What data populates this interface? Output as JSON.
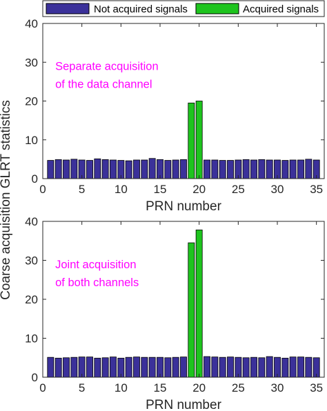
{
  "colors": {
    "not_acquired": "#3b319a",
    "acquired": "#1ec41e",
    "annotation": "#ff00ff",
    "axis": "#262626"
  },
  "legend": {
    "not_acquired_label": "Not acquired signals",
    "acquired_label": "Acquired signals",
    "placement": "top"
  },
  "ylabel": "Coarse acquisition GLRT statistics",
  "chart_data": [
    {
      "type": "bar",
      "xlabel": "PRN number",
      "xlim": [
        0,
        36
      ],
      "ylim": [
        0,
        40
      ],
      "xticks": [
        0,
        5,
        10,
        15,
        20,
        25,
        30,
        35
      ],
      "yticks": [
        0,
        10,
        20,
        30,
        40
      ],
      "annotation": [
        "Separate acquisition",
        "of the data channel"
      ],
      "x": [
        1,
        2,
        3,
        4,
        5,
        6,
        7,
        8,
        9,
        10,
        11,
        12,
        13,
        14,
        15,
        16,
        17,
        18,
        19,
        20,
        21,
        22,
        23,
        24,
        25,
        26,
        27,
        28,
        29,
        30,
        31,
        32,
        33,
        34,
        35
      ],
      "series": [
        {
          "name": "Not acquired signals",
          "values": [
            4.7,
            4.9,
            4.8,
            5.0,
            4.8,
            4.7,
            5.1,
            4.9,
            4.8,
            4.7,
            4.6,
            4.8,
            4.8,
            5.2,
            4.9,
            4.7,
            4.8,
            4.9,
            null,
            null,
            4.8,
            4.8,
            4.7,
            4.7,
            4.8,
            4.9,
            4.8,
            4.9,
            4.8,
            4.8,
            4.7,
            4.8,
            4.8,
            5.0,
            4.8
          ]
        },
        {
          "name": "Acquired signals",
          "values": [
            null,
            null,
            null,
            null,
            null,
            null,
            null,
            null,
            null,
            null,
            null,
            null,
            null,
            null,
            null,
            null,
            null,
            null,
            19.5,
            20.0,
            null,
            null,
            null,
            null,
            null,
            null,
            null,
            null,
            null,
            null,
            null,
            null,
            null,
            null,
            null
          ]
        }
      ]
    },
    {
      "type": "bar",
      "xlabel": "PRN number",
      "xlim": [
        0,
        36
      ],
      "ylim": [
        0,
        40
      ],
      "xticks": [
        0,
        5,
        10,
        15,
        20,
        25,
        30,
        35
      ],
      "yticks": [
        0,
        10,
        20,
        30,
        40
      ],
      "annotation": [
        "Joint acquisition",
        "of both channels"
      ],
      "x": [
        1,
        2,
        3,
        4,
        5,
        6,
        7,
        8,
        9,
        10,
        11,
        12,
        13,
        14,
        15,
        16,
        17,
        18,
        19,
        20,
        21,
        22,
        23,
        24,
        25,
        26,
        27,
        28,
        29,
        30,
        31,
        32,
        33,
        34,
        35
      ],
      "series": [
        {
          "name": "Not acquired signals",
          "values": [
            5.1,
            4.9,
            5.0,
            5.1,
            5.2,
            5.2,
            4.9,
            5.0,
            5.2,
            4.9,
            5.1,
            5.2,
            5.1,
            5.1,
            5.1,
            5.0,
            5.1,
            5.2,
            null,
            null,
            5.3,
            5.2,
            5.1,
            5.2,
            5.1,
            5.0,
            5.1,
            5.0,
            5.3,
            5.1,
            4.9,
            5.2,
            5.2,
            5.1,
            5.0
          ]
        },
        {
          "name": "Acquired signals",
          "values": [
            null,
            null,
            null,
            null,
            null,
            null,
            null,
            null,
            null,
            null,
            null,
            null,
            null,
            null,
            null,
            null,
            null,
            null,
            34.5,
            37.8,
            null,
            null,
            null,
            null,
            null,
            null,
            null,
            null,
            null,
            null,
            null,
            null,
            null,
            null,
            null
          ]
        }
      ]
    }
  ]
}
